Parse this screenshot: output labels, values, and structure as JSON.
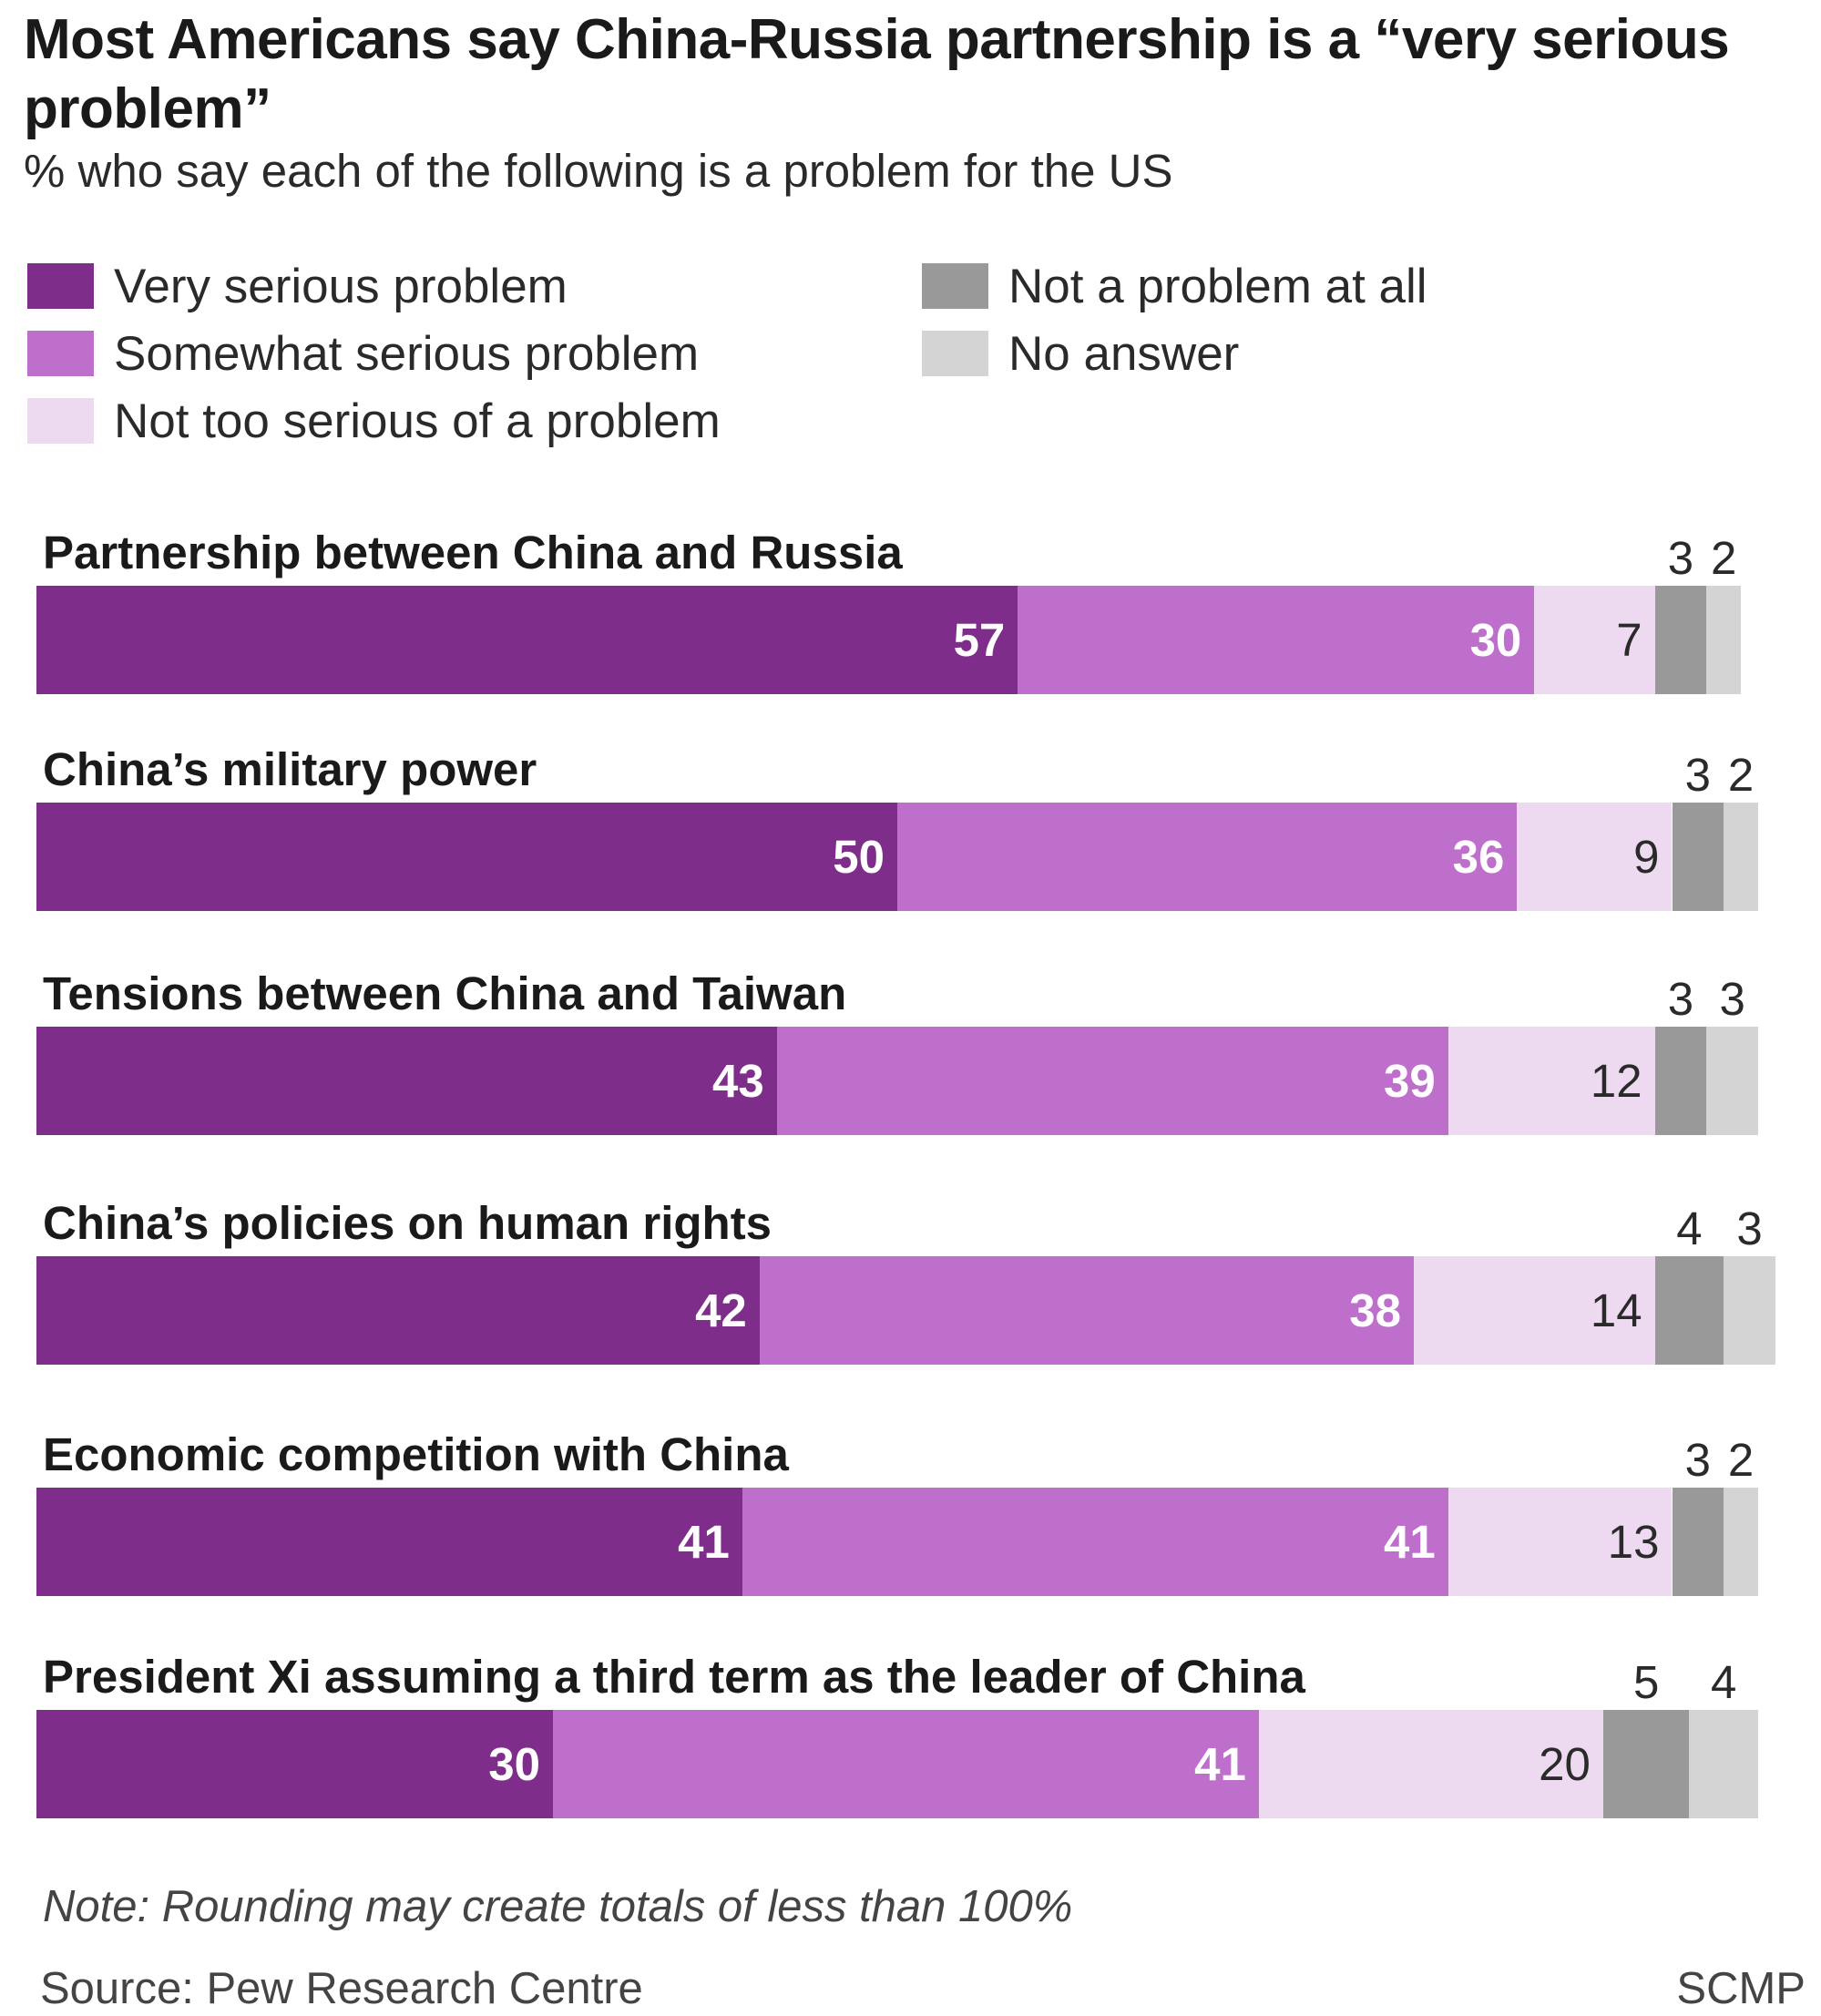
{
  "title": "Most Americans say China-Russia partnership is a “very serious problem”",
  "subtitle": "% who say each of the following is a problem for the US",
  "note": "Note: Rounding may create totals of less than 100%",
  "source": "Source: Pew Research Centre",
  "brand": "SCMP",
  "legend": [
    {
      "label": "Very serious problem",
      "color": "#7e2d8a"
    },
    {
      "label": "Somewhat serious problem",
      "color": "#be6fcc"
    },
    {
      "label": "Not too serious of a problem",
      "color": "#eedaf0"
    },
    {
      "label": "Not a problem at all",
      "color": "#999999"
    },
    {
      "label": "No answer",
      "color": "#d4d4d4"
    }
  ],
  "chart_data": {
    "type": "bar",
    "orientation": "horizontal",
    "stacked": true,
    "unit": "%",
    "legend_position": "top",
    "grid": false,
    "categories": [
      "Partnership between China and Russia",
      "China’s military power",
      "Tensions between China and Taiwan",
      "China’s policies on human rights",
      "Economic competition with China",
      "President Xi assuming a third term as the leader of China"
    ],
    "series": [
      {
        "name": "Very serious problem",
        "color": "#7e2d8a",
        "values": [
          57,
          50,
          43,
          42,
          41,
          30
        ]
      },
      {
        "name": "Somewhat serious problem",
        "color": "#be6fcc",
        "values": [
          30,
          36,
          39,
          38,
          41,
          41
        ]
      },
      {
        "name": "Not too serious of a problem",
        "color": "#eedaf0",
        "values": [
          7,
          9,
          12,
          14,
          13,
          20
        ]
      },
      {
        "name": "Not a problem at all",
        "color": "#999999",
        "values": [
          3,
          3,
          3,
          4,
          3,
          5
        ]
      },
      {
        "name": "No answer",
        "color": "#d4d4d4",
        "values": [
          2,
          2,
          3,
          3,
          2,
          4
        ]
      }
    ]
  }
}
